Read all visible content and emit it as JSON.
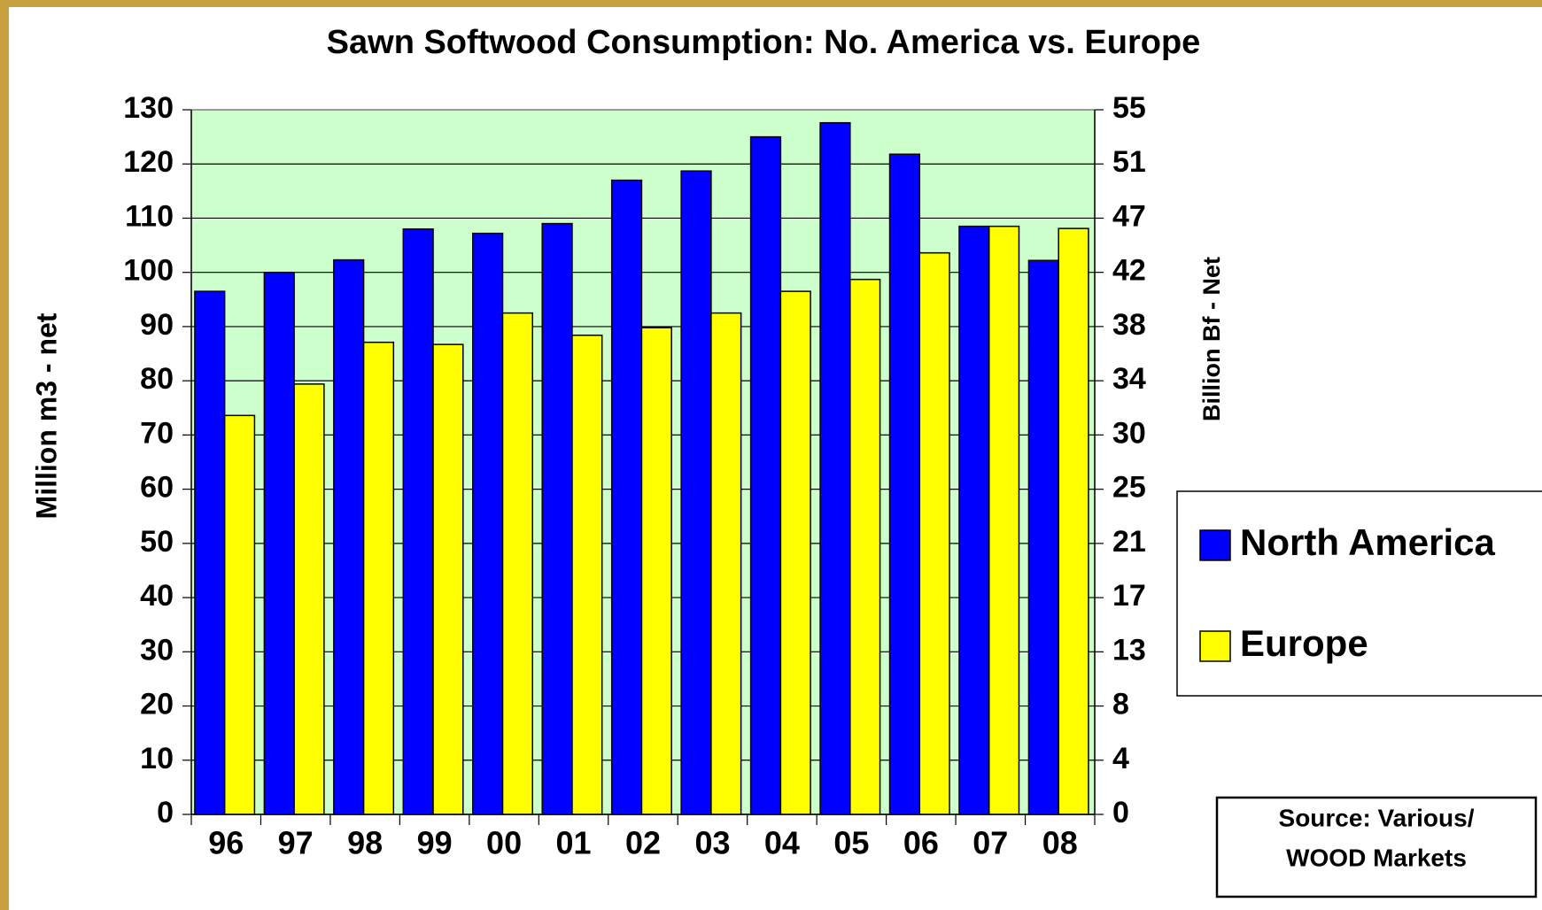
{
  "chart_data": {
    "type": "bar",
    "title": "Sawn Softwood Consumption: No. America vs. Europe",
    "y_label": "Million m3 - net",
    "y2_label": "Billion Bf - Net",
    "categories": [
      "96",
      "97",
      "98",
      "99",
      "00",
      "01",
      "02",
      "03",
      "04",
      "05",
      "06",
      "07",
      "08"
    ],
    "series": [
      {
        "name": "North America",
        "color": "#0000ff",
        "values": [
          96.5,
          100,
          102.3,
          108,
          107.2,
          109,
          117,
          118.7,
          125,
          127.6,
          121.8,
          108.5,
          102.2
        ]
      },
      {
        "name": "Europe",
        "color": "#ffff00",
        "values": [
          73.6,
          79.4,
          87.1,
          86.7,
          92.5,
          88.4,
          89.8,
          92.5,
          96.5,
          98.7,
          103.6,
          108.5,
          108.1
        ]
      }
    ],
    "ylim": [
      0,
      130
    ],
    "yticks": [
      0,
      10,
      20,
      30,
      40,
      50,
      60,
      70,
      80,
      90,
      100,
      110,
      120,
      130
    ],
    "y2lim": [
      0,
      55
    ],
    "y2ticks": [
      0,
      {
        "value": 4.23,
        "label": "4"
      },
      {
        "value": 8.46,
        "label": "8"
      },
      {
        "value": 12.69,
        "label": "13"
      },
      {
        "value": 16.92,
        "label": "17"
      },
      {
        "value": 21.15,
        "label": "21"
      },
      {
        "value": 25.38,
        "label": "25"
      },
      {
        "value": 29.62,
        "label": "30"
      },
      {
        "value": 33.85,
        "label": "34"
      },
      {
        "value": 38.08,
        "label": "38"
      },
      {
        "value": 42.31,
        "label": "42"
      },
      {
        "value": 46.54,
        "label": "47"
      },
      {
        "value": 50.77,
        "label": "51"
      },
      55
    ],
    "grid": true,
    "plot_background": "#ccffcc",
    "legend_position": "right",
    "source_note": [
      "Source: Various/",
      "WOOD Markets"
    ]
  }
}
